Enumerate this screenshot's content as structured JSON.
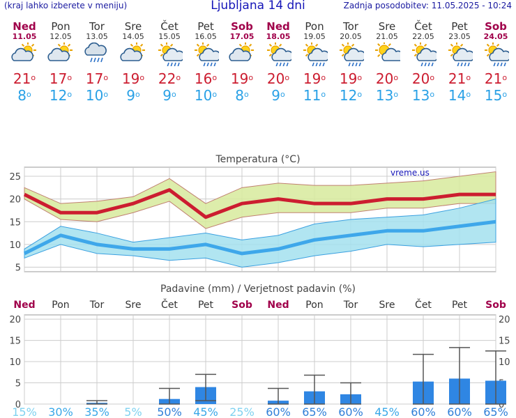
{
  "header": {
    "left_note": "(kraj lahko izberete v meniju)",
    "title": "Ljubljana 14 dni",
    "updated": "Zadnja posodobitev: 11.05.2025 - 10:24"
  },
  "colors": {
    "max": "#cc1d30",
    "min": "#2aa1e6",
    "weekend": "#a0004a",
    "bar": "#2f86e3",
    "pct": "#39b6ea"
  },
  "days": [
    {
      "name": "Ned",
      "date": "11.05",
      "weekend": true,
      "icon": "partly-cloudy-icon",
      "tmax": "21",
      "tmin": "8"
    },
    {
      "name": "Pon",
      "date": "12.05",
      "weekend": false,
      "icon": "partly-cloudy-icon",
      "tmax": "17",
      "tmin": "12"
    },
    {
      "name": "Tor",
      "date": "13.05",
      "weekend": false,
      "icon": "rain-cloud-icon",
      "tmax": "17",
      "tmin": "10"
    },
    {
      "name": "Sre",
      "date": "14.05",
      "weekend": false,
      "icon": "partly-cloudy-icon",
      "tmax": "19",
      "tmin": "9"
    },
    {
      "name": "Čet",
      "date": "15.05",
      "weekend": false,
      "icon": "sun-shower-icon",
      "tmax": "22",
      "tmin": "9"
    },
    {
      "name": "Pet",
      "date": "16.05",
      "weekend": false,
      "icon": "sun-shower-icon",
      "tmax": "16",
      "tmin": "10"
    },
    {
      "name": "Sob",
      "date": "17.05",
      "weekend": true,
      "icon": "partly-cloudy-icon",
      "tmax": "19",
      "tmin": "8"
    },
    {
      "name": "Ned",
      "date": "18.05",
      "weekend": true,
      "icon": "sun-shower-icon",
      "tmax": "20",
      "tmin": "9"
    },
    {
      "name": "Pon",
      "date": "19.05",
      "weekend": false,
      "icon": "sun-shower-icon",
      "tmax": "19",
      "tmin": "11"
    },
    {
      "name": "Tor",
      "date": "20.05",
      "weekend": false,
      "icon": "sun-shower-icon",
      "tmax": "19",
      "tmin": "12"
    },
    {
      "name": "Sre",
      "date": "21.05",
      "weekend": false,
      "icon": "partly-sunny-icon",
      "tmax": "20",
      "tmin": "13"
    },
    {
      "name": "Čet",
      "date": "22.05",
      "weekend": false,
      "icon": "sun-shower-icon",
      "tmax": "20",
      "tmin": "13"
    },
    {
      "name": "Pet",
      "date": "23.05",
      "weekend": false,
      "icon": "sun-shower-icon",
      "tmax": "21",
      "tmin": "14"
    },
    {
      "name": "Sob",
      "date": "24.05",
      "weekend": true,
      "icon": "sun-shower-icon",
      "tmax": "21",
      "tmin": "15"
    }
  ],
  "chart_data": [
    {
      "type": "line",
      "title": "Temperatura (°C)",
      "watermark": "vreme.us",
      "ylim": [
        4,
        27
      ],
      "yticks": [
        5,
        10,
        15,
        20,
        25
      ],
      "series": [
        {
          "name": "max",
          "values": [
            21,
            17,
            17,
            19,
            22,
            16,
            19,
            20,
            19,
            19,
            20,
            20,
            21,
            21
          ],
          "band_low": [
            20,
            15.5,
            15,
            17,
            19.5,
            13.5,
            16,
            17,
            17,
            17,
            18,
            18,
            19,
            19
          ],
          "band_high": [
            22.5,
            19,
            19.5,
            20.5,
            24.5,
            19,
            22.5,
            23.5,
            23,
            23,
            23.5,
            24,
            25,
            26
          ]
        },
        {
          "name": "min",
          "values": [
            8,
            12,
            10,
            9,
            9,
            10,
            8,
            9,
            11,
            12,
            13,
            13,
            14,
            15
          ],
          "band_low": [
            7,
            10,
            8,
            7.5,
            6.5,
            7,
            5,
            6,
            7.5,
            8.5,
            10,
            9.5,
            10,
            10.5
          ],
          "band_high": [
            9,
            14,
            12.5,
            10.5,
            11.5,
            12.5,
            11,
            12,
            14.5,
            15.5,
            16,
            16.5,
            18,
            20
          ]
        }
      ]
    },
    {
      "type": "bar",
      "title": "Padavine (mm) / Verjetnost padavin (%)",
      "ylim": [
        0,
        21
      ],
      "yticks": [
        0,
        5,
        10,
        15,
        20
      ],
      "categories": [
        "Ned",
        "Pon",
        "Tor",
        "Sre",
        "Čet",
        "Pet",
        "Sob",
        "Ned",
        "Pon",
        "Tor",
        "Sre",
        "Čet",
        "Pet",
        "Sob"
      ],
      "values": [
        0,
        0,
        0.3,
        0,
        1.2,
        4,
        0,
        0.8,
        3,
        2.3,
        0,
        5.3,
        6,
        5.5
      ],
      "err_low": [
        0,
        0,
        0,
        0,
        0,
        0.8,
        0,
        0,
        0,
        0,
        0,
        0,
        0,
        0
      ],
      "err_high": [
        0,
        0,
        0.8,
        0,
        3.7,
        7,
        0,
        3.7,
        6.8,
        5,
        0,
        11.7,
        13.3,
        12.5
      ],
      "probability": [
        "15%",
        "30%",
        "35%",
        "5%",
        "50%",
        "45%",
        "25%",
        "60%",
        "65%",
        "60%",
        "45%",
        "60%",
        "60%",
        "65%"
      ]
    }
  ]
}
